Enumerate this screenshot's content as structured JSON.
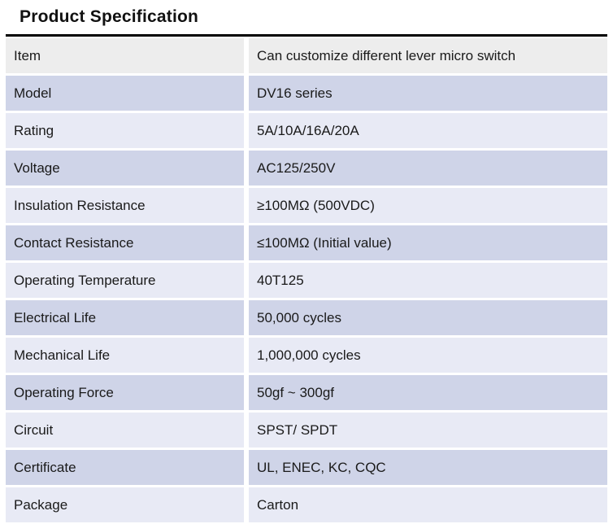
{
  "page_title": "Product Specification",
  "table": {
    "rows": [
      {
        "label": "Item",
        "value": "Can customize different lever micro switch"
      },
      {
        "label": "Model",
        "value": "DV16 series"
      },
      {
        "label": "Rating",
        "value": "5A/10A/16A/20A"
      },
      {
        "label": "Voltage",
        "value": "AC125/250V"
      },
      {
        "label": "Insulation Resistance",
        "value": "≥100MΩ (500VDC)"
      },
      {
        "label": "Contact Resistance",
        "value": "≤100MΩ (Initial value)"
      },
      {
        "label": "Operating Temperature",
        "value": "40T125"
      },
      {
        "label": "Electrical Life",
        "value": "50,000 cycles"
      },
      {
        "label": "Mechanical Life",
        "value": "1,000,000 cycles"
      },
      {
        "label": "Operating Force",
        "value": "50gf ~ 300gf"
      },
      {
        "label": "Circuit",
        "value": "SPST/ SPDT"
      },
      {
        "label": "Certificate",
        "value": "UL, ENEC, KC, CQC"
      },
      {
        "label": "Package",
        "value": "Carton"
      }
    ]
  },
  "colors": {
    "page_bg": "#ffffff",
    "text": "#1a1a1a",
    "title_rule": "#000000",
    "header_row_bg": "#ededed",
    "band_dark": "#cfd4e8",
    "band_light": "#e8eaf5"
  }
}
